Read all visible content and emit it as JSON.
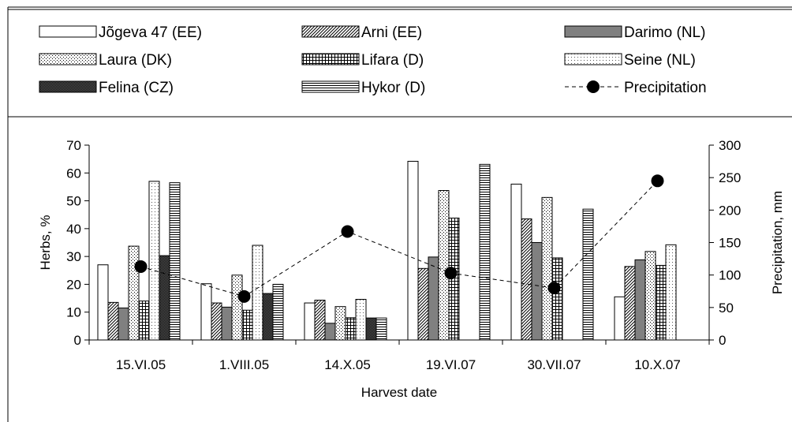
{
  "chart_data": {
    "type": "bar",
    "categories": [
      "15.VI.05",
      "1.VIII.05",
      "14.X.05",
      "19.VI.07",
      "30.VII.07",
      "10.X.07"
    ],
    "series": [
      {
        "name": "Jõgeva 47 (EE)",
        "pattern": "plain",
        "values": [
          27,
          20.2,
          13.3,
          64.2,
          56,
          15.5
        ]
      },
      {
        "name": "Arni (EE)",
        "pattern": "diagonal",
        "values": [
          13.5,
          13.3,
          14.3,
          25.7,
          43.5,
          26.4
        ]
      },
      {
        "name": "Darimo (NL)",
        "pattern": "solid-gray",
        "values": [
          11.5,
          11.8,
          6,
          29.8,
          35,
          28.8
        ]
      },
      {
        "name": "Laura (DK)",
        "pattern": "dots",
        "values": [
          33.7,
          23.3,
          12,
          53.7,
          51.2,
          31.8
        ]
      },
      {
        "name": "Lifara (D)",
        "pattern": "grid",
        "values": [
          14,
          10.7,
          8,
          43.8,
          29.5,
          26.8
        ]
      },
      {
        "name": "Seine (NL)",
        "pattern": "fine-dots",
        "values": [
          57,
          34,
          14.6,
          null,
          null,
          34.2
        ]
      },
      {
        "name": "Felina (CZ)",
        "pattern": "dark-check",
        "values": [
          30.3,
          16.7,
          7.9,
          null,
          null,
          null
        ]
      },
      {
        "name": "Hykor (D)",
        "pattern": "horizontal",
        "values": [
          56.5,
          20,
          7.9,
          63.1,
          47,
          null
        ]
      }
    ],
    "line_series": {
      "name": "Precipitation",
      "axis": "right",
      "values": [
        113,
        67,
        167,
        103,
        null,
        245
      ],
      "extra_point": {
        "x_between": [
          4,
          4
        ],
        "value": 80
      }
    },
    "precipitation_points": [
      {
        "category": "15.VI.05",
        "value": 113
      },
      {
        "category": "1.VIII.05",
        "value": 67
      },
      {
        "category": "14.X.05",
        "value": 167
      },
      {
        "category": "19.VI.07",
        "value": 103
      },
      {
        "category": "30.VII.07",
        "value": 80
      },
      {
        "category": "10.X.07",
        "value": 245
      }
    ],
    "xlabel": "Harvest date",
    "ylabel": "Herbs, %",
    "y2label": "Precipitation, mm",
    "ylim": [
      0,
      70
    ],
    "y2lim": [
      0,
      300
    ],
    "yticks": [
      "0",
      "10",
      "20",
      "30",
      "40",
      "50",
      "60",
      "70"
    ],
    "y2ticks": [
      "0",
      "50",
      "100",
      "150",
      "200",
      "250",
      "300"
    ],
    "grid": false,
    "legend_position": "top"
  }
}
